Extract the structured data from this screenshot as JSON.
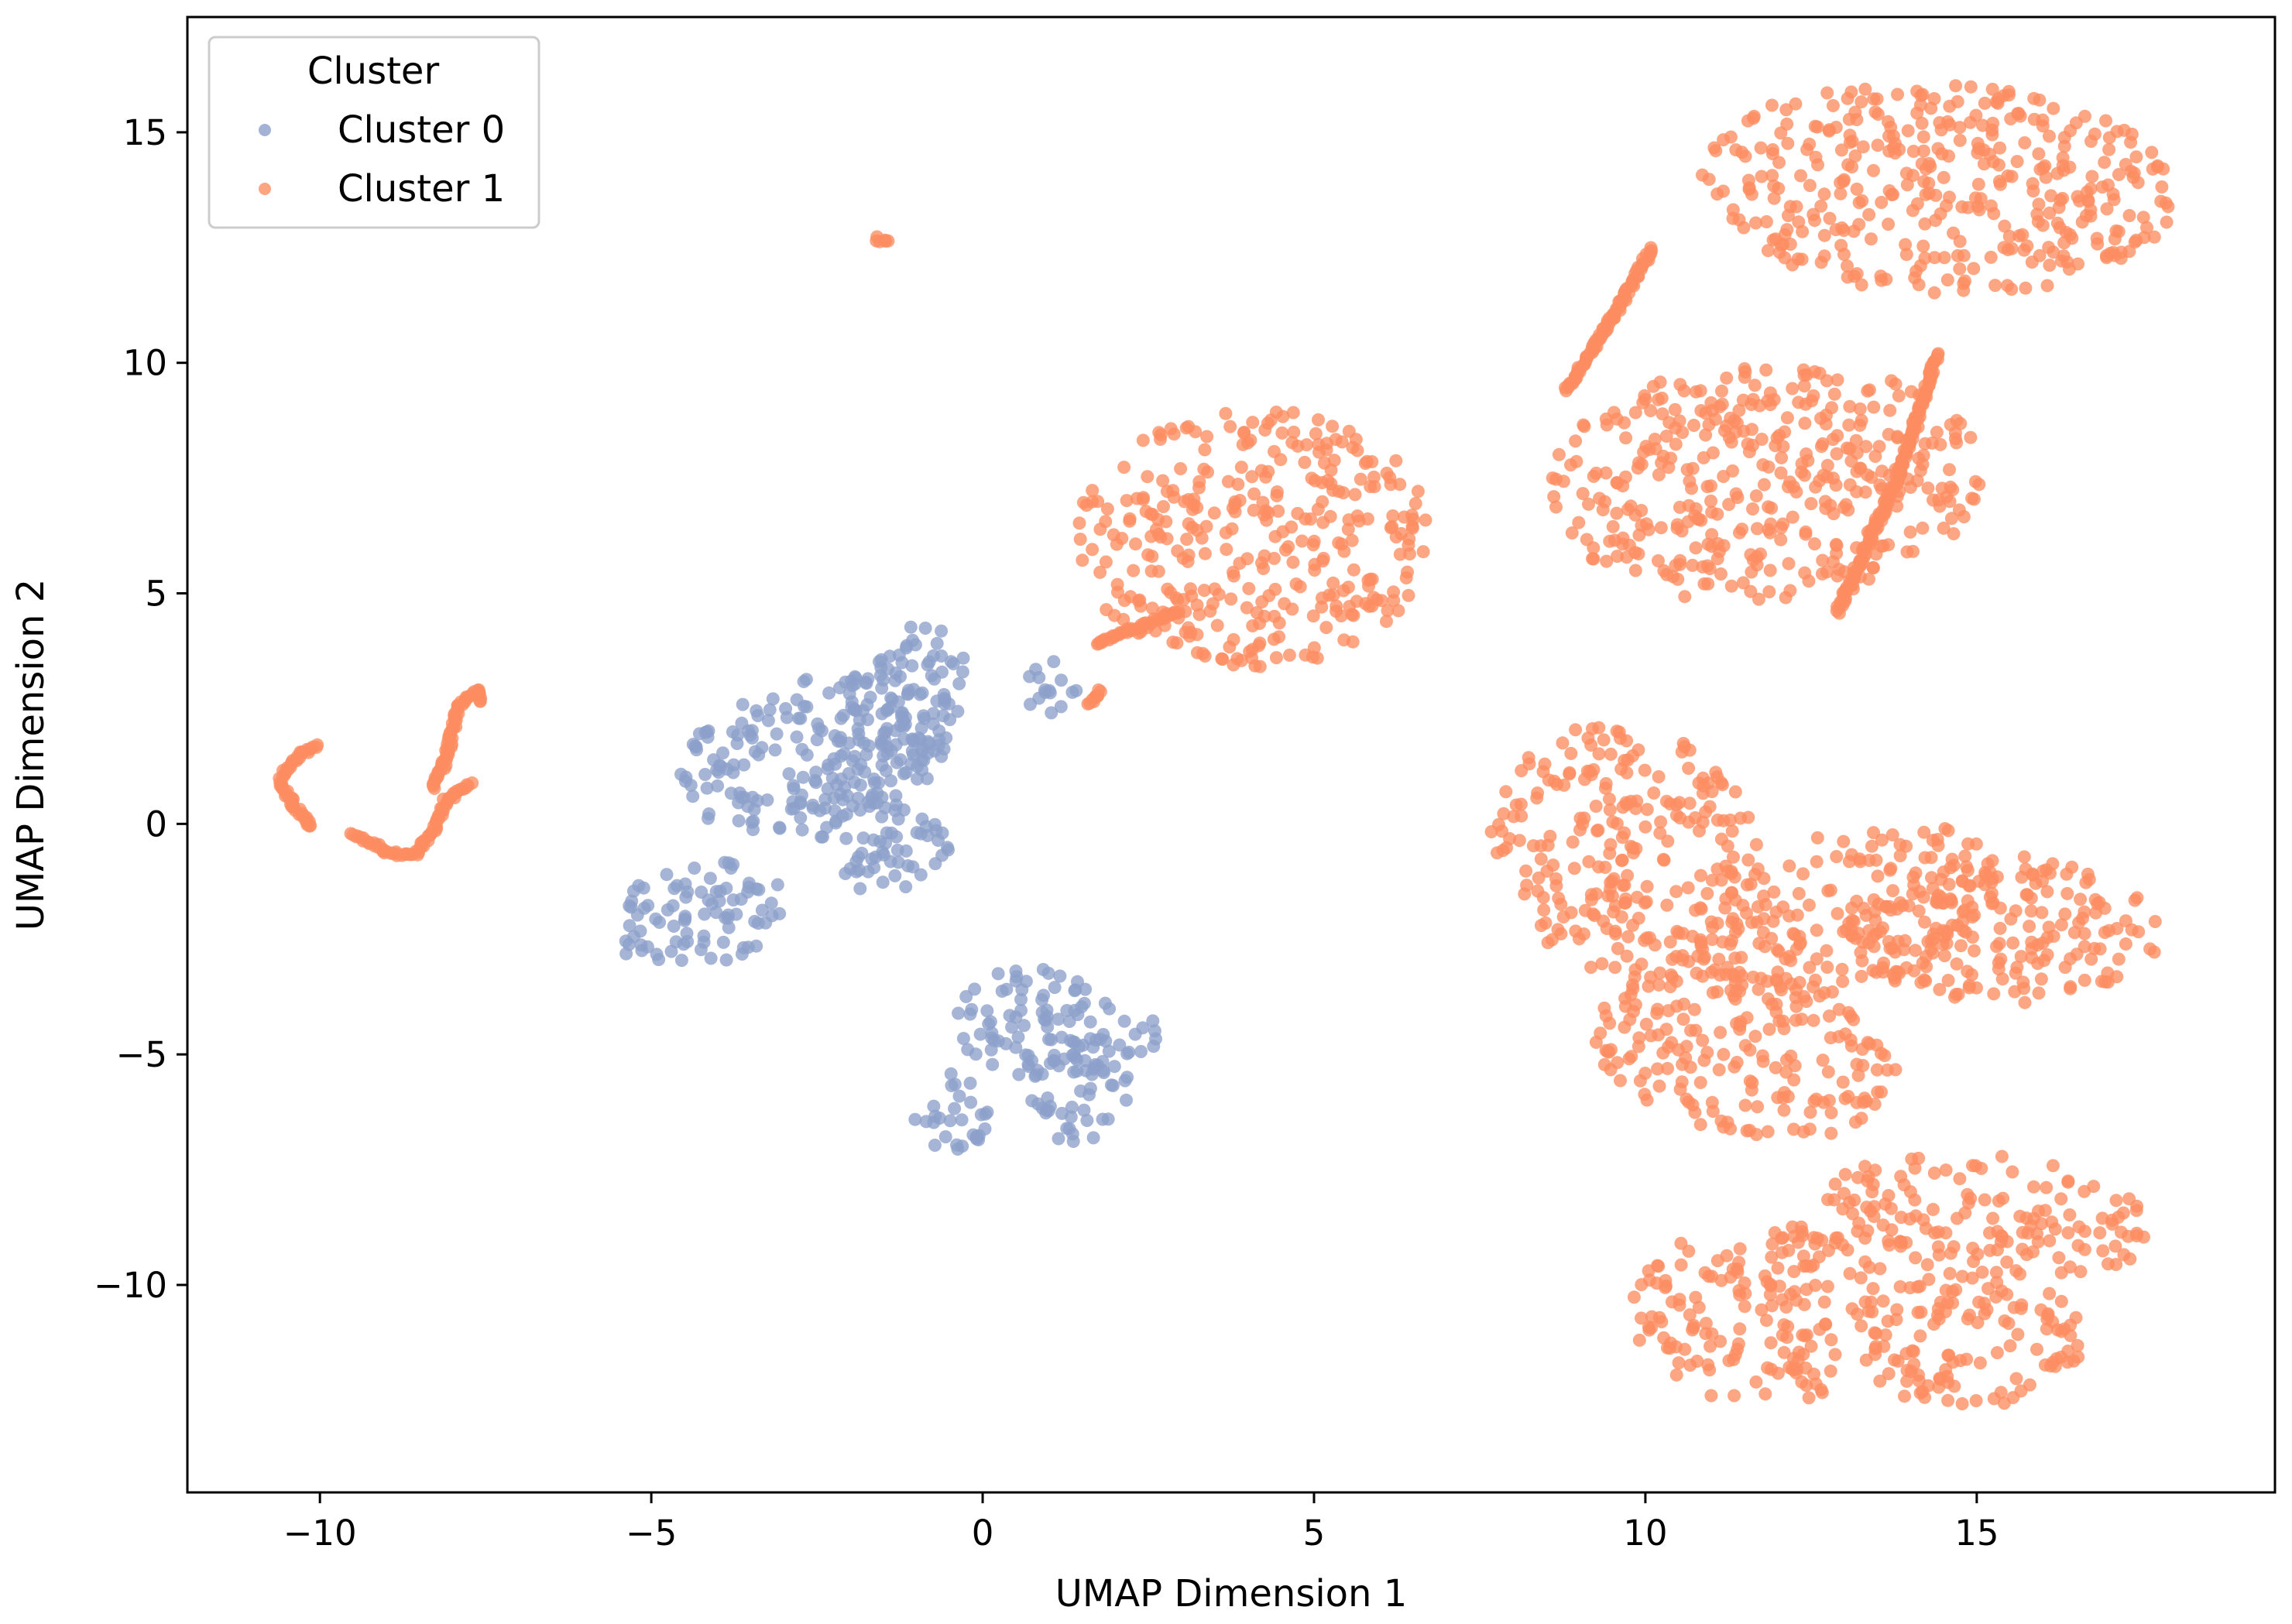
{
  "chart_data": {
    "type": "scatter",
    "title": "",
    "xlabel": "UMAP Dimension 1",
    "ylabel": "UMAP Dimension 2",
    "xlim": [
      -12,
      19.5
    ],
    "ylim": [
      -14.5,
      17.5
    ],
    "xticks": [
      -10,
      -5,
      0,
      5,
      10,
      15
    ],
    "yticks": [
      -10,
      -5,
      0,
      5,
      10,
      15
    ],
    "xtick_labels": [
      "−10",
      "−5",
      "0",
      "5",
      "10",
      "15"
    ],
    "ytick_labels": [
      "−10",
      "−5",
      "0",
      "5",
      "10",
      "15"
    ],
    "grid": false,
    "legend": {
      "title": "Cluster",
      "position": "top-left",
      "entries": [
        "Cluster 0",
        "Cluster 1"
      ]
    },
    "series": [
      {
        "name": "Cluster 0",
        "color": "#8da0cb",
        "regions": [
          {
            "cx": -2.5,
            "cy": 1.5,
            "rx": 2.2,
            "ry": 1.6,
            "angle": 30
          },
          {
            "cx": -4.3,
            "cy": -2.0,
            "rx": 1.4,
            "ry": 1.1,
            "angle": 40
          },
          {
            "cx": -1.2,
            "cy": 2.5,
            "rx": 0.9,
            "ry": 2.0,
            "angle": -10
          },
          {
            "cx": -1.5,
            "cy": -0.5,
            "rx": 1.0,
            "ry": 1.0,
            "angle": 0
          },
          {
            "cx": 1.0,
            "cy": 3.0,
            "rx": 0.45,
            "ry": 0.6,
            "angle": 0
          },
          {
            "cx": 0.8,
            "cy": -4.3,
            "rx": 1.2,
            "ry": 1.2,
            "angle": 0
          },
          {
            "cx": -0.5,
            "cy": -6.3,
            "rx": 0.6,
            "ry": 0.9,
            "angle": 0
          },
          {
            "cx": 1.5,
            "cy": -5.7,
            "rx": 0.8,
            "ry": 1.3,
            "angle": 0
          },
          {
            "cx": 2.2,
            "cy": -4.6,
            "rx": 0.6,
            "ry": 0.4,
            "angle": 20
          }
        ]
      },
      {
        "name": "Cluster 1",
        "color": "#fc8d62",
        "regions": [
          {
            "cx": 4.1,
            "cy": 6.2,
            "rx": 2.7,
            "ry": 2.8,
            "angle": 0
          },
          {
            "cx": 14.4,
            "cy": 13.8,
            "rx": 3.6,
            "ry": 2.3,
            "angle": -5
          },
          {
            "cx": 11.8,
            "cy": 7.4,
            "rx": 3.3,
            "ry": 2.6,
            "angle": 8
          },
          {
            "cx": 9.7,
            "cy": -0.6,
            "rx": 2.0,
            "ry": 2.8,
            "angle": 10
          },
          {
            "cx": 13.0,
            "cy": -2.0,
            "rx": 2.6,
            "ry": 1.7,
            "angle": 35
          },
          {
            "cx": 15.5,
            "cy": -2.3,
            "rx": 2.3,
            "ry": 1.6,
            "angle": 0
          },
          {
            "cx": 11.5,
            "cy": -5.0,
            "rx": 2.4,
            "ry": 1.7,
            "angle": -25
          },
          {
            "cx": 11.8,
            "cy": -10.6,
            "rx": 2.0,
            "ry": 2.0,
            "angle": 0
          },
          {
            "cx": 15.2,
            "cy": -8.5,
            "rx": 2.5,
            "ry": 1.3,
            "angle": -10
          },
          {
            "cx": 14.9,
            "cy": -11.2,
            "rx": 1.7,
            "ry": 1.5,
            "angle": 0
          }
        ],
        "curves": [
          {
            "points": [
              [
                -10.6,
                0.9
              ],
              [
                -10.4,
                0.4
              ],
              [
                -10.1,
                -0.1
              ]
            ]
          },
          {
            "points": [
              [
                -10.6,
                1.0
              ],
              [
                -10.3,
                1.5
              ],
              [
                -10.0,
                1.7
              ]
            ]
          },
          {
            "points": [
              [
                -9.5,
                -0.2
              ],
              [
                -9.0,
                -0.6
              ],
              [
                -8.6,
                -0.7
              ],
              [
                -8.3,
                -0.2
              ],
              [
                -8.1,
                0.5
              ],
              [
                -7.7,
                0.9
              ]
            ]
          },
          {
            "points": [
              [
                -8.3,
                0.8
              ],
              [
                -8.1,
                1.4
              ],
              [
                -8.0,
                2.0
              ],
              [
                -7.9,
                2.6
              ],
              [
                -7.6,
                2.9
              ],
              [
                -7.6,
                2.6
              ]
            ]
          },
          {
            "points": [
              [
                -1.6,
                12.7
              ],
              [
                -1.4,
                12.6
              ]
            ]
          },
          {
            "points": [
              [
                1.7,
                3.9
              ],
              [
                2.4,
                4.3
              ],
              [
                3.0,
                4.6
              ]
            ]
          },
          {
            "points": [
              [
                1.6,
                2.6
              ],
              [
                1.8,
                2.9
              ]
            ]
          },
          {
            "points": [
              [
                8.8,
                9.4
              ],
              [
                9.6,
                11.2
              ],
              [
                10.1,
                12.5
              ]
            ]
          },
          {
            "points": [
              [
                12.9,
                4.6
              ],
              [
                13.8,
                7.5
              ],
              [
                14.4,
                10.2
              ]
            ]
          }
        ]
      }
    ]
  }
}
